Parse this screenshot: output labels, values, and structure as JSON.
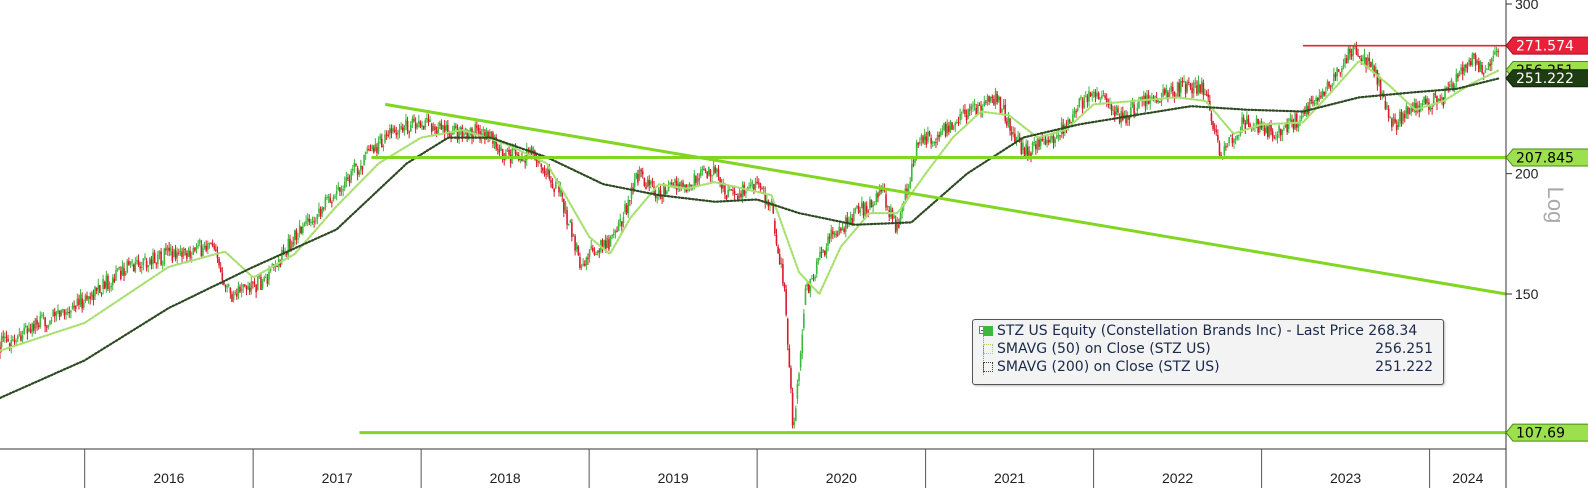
{
  "chart_data": {
    "type": "line",
    "title": "",
    "xlabel": "",
    "ylabel": "Log",
    "y_scale": "log",
    "ylim": [
      103,
      300
    ],
    "y_ticks": [
      {
        "value": 300,
        "label": "300"
      },
      {
        "value": 200,
        "label": "200"
      },
      {
        "value": 150,
        "label": "150"
      }
    ],
    "x_range": [
      "2015-07-01",
      "2024-06-15"
    ],
    "x_ticks": [
      {
        "label": "2016",
        "start": "2016-01-01",
        "end": "2017-01-01"
      },
      {
        "label": "2017",
        "start": "2017-01-01",
        "end": "2018-01-01"
      },
      {
        "label": "2018",
        "start": "2018-01-01",
        "end": "2019-01-01"
      },
      {
        "label": "2019",
        "start": "2019-01-01",
        "end": "2020-01-01"
      },
      {
        "label": "2020",
        "start": "2020-01-01",
        "end": "2021-01-01"
      },
      {
        "label": "2021",
        "start": "2021-01-01",
        "end": "2022-01-01"
      },
      {
        "label": "2022",
        "start": "2022-01-01",
        "end": "2023-01-01"
      },
      {
        "label": "2023",
        "start": "2023-01-01",
        "end": "2024-01-01"
      },
      {
        "label": "2024",
        "start": "2024-01-01",
        "end": "2024-06-15"
      }
    ],
    "grid": false,
    "legend_position": "bottom-right",
    "colors": {
      "up": "#3cb83c",
      "down": "#d91a2a",
      "sma50": "#a8e070",
      "sma200": "#2e4a22",
      "trend": "#80d620",
      "resistance": "#e8203a"
    },
    "series": [
      {
        "name": "STZ US Equity (Constellation Brands Inc) - Last Price",
        "style": "candlestick",
        "points": [
          [
            "2015-07-01",
            133
          ],
          [
            "2015-10-01",
            140
          ],
          [
            "2016-01-01",
            148
          ],
          [
            "2016-04-01",
            160
          ],
          [
            "2016-07-01",
            165
          ],
          [
            "2016-10-01",
            168
          ],
          [
            "2016-11-15",
            150
          ],
          [
            "2017-01-01",
            153
          ],
          [
            "2017-02-01",
            155
          ],
          [
            "2017-04-01",
            172
          ],
          [
            "2017-07-01",
            192
          ],
          [
            "2017-10-01",
            215
          ],
          [
            "2017-12-01",
            225
          ],
          [
            "2018-01-15",
            226
          ],
          [
            "2018-03-01",
            220
          ],
          [
            "2018-05-01",
            222
          ],
          [
            "2018-06-01",
            218
          ],
          [
            "2018-07-01",
            208
          ],
          [
            "2018-09-01",
            210
          ],
          [
            "2018-11-01",
            190
          ],
          [
            "2018-12-15",
            160
          ],
          [
            "2019-01-01",
            165
          ],
          [
            "2019-02-15",
            170
          ],
          [
            "2019-03-15",
            180
          ],
          [
            "2019-04-15",
            200
          ],
          [
            "2019-05-01",
            196
          ],
          [
            "2019-06-01",
            190
          ],
          [
            "2019-07-01",
            195
          ],
          [
            "2019-08-01",
            192
          ],
          [
            "2019-09-01",
            200
          ],
          [
            "2019-10-01",
            200
          ],
          [
            "2019-11-01",
            190
          ],
          [
            "2019-12-01",
            192
          ],
          [
            "2020-01-01",
            195
          ],
          [
            "2020-02-01",
            185
          ],
          [
            "2020-03-01",
            150
          ],
          [
            "2020-03-20",
            107
          ],
          [
            "2020-04-15",
            150
          ],
          [
            "2020-06-01",
            170
          ],
          [
            "2020-08-01",
            182
          ],
          [
            "2020-10-01",
            190
          ],
          [
            "2020-11-01",
            175
          ],
          [
            "2020-12-15",
            215
          ],
          [
            "2021-02-01",
            220
          ],
          [
            "2021-04-01",
            232
          ],
          [
            "2021-06-01",
            240
          ],
          [
            "2021-08-01",
            212
          ],
          [
            "2021-10-01",
            215
          ],
          [
            "2021-12-01",
            235
          ],
          [
            "2022-01-01",
            245
          ],
          [
            "2022-03-01",
            228
          ],
          [
            "2022-05-01",
            240
          ],
          [
            "2022-07-01",
            245
          ],
          [
            "2022-09-01",
            245
          ],
          [
            "2022-10-01",
            210
          ],
          [
            "2022-12-01",
            228
          ],
          [
            "2023-02-01",
            220
          ],
          [
            "2023-04-01",
            230
          ],
          [
            "2023-06-01",
            250
          ],
          [
            "2023-07-15",
            270
          ],
          [
            "2023-09-01",
            258
          ],
          [
            "2023-10-15",
            225
          ],
          [
            "2023-12-01",
            235
          ],
          [
            "2024-02-01",
            240
          ],
          [
            "2024-04-01",
            262
          ],
          [
            "2024-05-01",
            255
          ],
          [
            "2024-06-01",
            268.34
          ]
        ]
      },
      {
        "name": "SMAVG (50) on Close (STZ US)",
        "style": "dotted",
        "points": [
          [
            "2015-07-01",
            131
          ],
          [
            "2016-01-01",
            140
          ],
          [
            "2016-07-01",
            160
          ],
          [
            "2016-11-01",
            166
          ],
          [
            "2017-01-01",
            156
          ],
          [
            "2017-04-01",
            165
          ],
          [
            "2017-07-01",
            185
          ],
          [
            "2017-10-01",
            205
          ],
          [
            "2018-01-01",
            218
          ],
          [
            "2018-04-01",
            222
          ],
          [
            "2018-07-01",
            215
          ],
          [
            "2018-10-01",
            205
          ],
          [
            "2019-01-01",
            172
          ],
          [
            "2019-02-15",
            165
          ],
          [
            "2019-04-01",
            180
          ],
          [
            "2019-06-01",
            195
          ],
          [
            "2019-08-01",
            193
          ],
          [
            "2019-10-01",
            196
          ],
          [
            "2019-12-01",
            193
          ],
          [
            "2020-02-01",
            190
          ],
          [
            "2020-04-01",
            158
          ],
          [
            "2020-05-15",
            150
          ],
          [
            "2020-07-01",
            168
          ],
          [
            "2020-09-01",
            182
          ],
          [
            "2020-11-01",
            182
          ],
          [
            "2021-01-01",
            200
          ],
          [
            "2021-03-01",
            218
          ],
          [
            "2021-05-01",
            232
          ],
          [
            "2021-07-01",
            230
          ],
          [
            "2021-09-01",
            218
          ],
          [
            "2021-11-01",
            222
          ],
          [
            "2022-01-01",
            236
          ],
          [
            "2022-04-01",
            238
          ],
          [
            "2022-07-01",
            240
          ],
          [
            "2022-09-01",
            238
          ],
          [
            "2022-11-01",
            220
          ],
          [
            "2023-01-01",
            225
          ],
          [
            "2023-04-01",
            226
          ],
          [
            "2023-06-01",
            243
          ],
          [
            "2023-08-01",
            262
          ],
          [
            "2023-10-01",
            248
          ],
          [
            "2023-12-01",
            233
          ],
          [
            "2024-02-01",
            238
          ],
          [
            "2024-04-01",
            248
          ],
          [
            "2024-06-01",
            256.251
          ]
        ]
      },
      {
        "name": "SMAVG (200) on Close (STZ US)",
        "style": "dotted",
        "points": [
          [
            "2015-07-01",
            117
          ],
          [
            "2016-01-01",
            128
          ],
          [
            "2016-07-01",
            145
          ],
          [
            "2017-01-01",
            160
          ],
          [
            "2017-07-01",
            175
          ],
          [
            "2017-12-01",
            205
          ],
          [
            "2018-03-01",
            218
          ],
          [
            "2018-06-01",
            218
          ],
          [
            "2018-10-01",
            208
          ],
          [
            "2019-02-01",
            195
          ],
          [
            "2019-06-01",
            190
          ],
          [
            "2019-10-01",
            187
          ],
          [
            "2020-01-01",
            188
          ],
          [
            "2020-04-01",
            182
          ],
          [
            "2020-08-01",
            177
          ],
          [
            "2020-12-01",
            178
          ],
          [
            "2021-04-01",
            200
          ],
          [
            "2021-08-01",
            218
          ],
          [
            "2021-12-01",
            225
          ],
          [
            "2022-04-01",
            230
          ],
          [
            "2022-08-01",
            235
          ],
          [
            "2022-12-01",
            233
          ],
          [
            "2023-04-01",
            232
          ],
          [
            "2023-08-01",
            240
          ],
          [
            "2023-12-01",
            243
          ],
          [
            "2024-03-01",
            245
          ],
          [
            "2024-06-01",
            251.222
          ]
        ]
      }
    ],
    "annotations": {
      "trendlines": [
        {
          "kind": "descending",
          "from": [
            "2017-10-15",
            236
          ],
          "to": [
            "2024-06-15",
            150
          ]
        },
        {
          "kind": "horizontal",
          "from": [
            "2017-09-15",
            207.845
          ],
          "to": [
            "2024-06-15",
            207.845
          ]
        },
        {
          "kind": "horizontal",
          "from": [
            "2017-08-20",
            107.69
          ],
          "to": [
            "2024-06-15",
            107.69
          ]
        }
      ],
      "resistance": {
        "from": [
          "2023-04-01",
          271.574
        ],
        "to": [
          "2024-06-15",
          271.574
        ]
      },
      "price_labels": [
        {
          "value": 271.574,
          "label": "271.574",
          "style": "red"
        },
        {
          "value": 256.251,
          "label": "256.251",
          "style": "light-green"
        },
        {
          "value": 251.222,
          "label": "251.222",
          "style": "dark-green"
        },
        {
          "value": 207.845,
          "label": "207.845",
          "style": "light-green"
        },
        {
          "value": 107.69,
          "label": "107.69",
          "style": "light-green"
        }
      ]
    },
    "legend": [
      {
        "text": "STZ US Equity (Constellation Brands Inc) - Last Price 268.34",
        "value": ""
      },
      {
        "text": "SMAVG (50)  on Close (STZ US)",
        "value": "256.251"
      },
      {
        "text": "SMAVG (200)  on Close (STZ US)",
        "value": "251.222"
      }
    ]
  }
}
